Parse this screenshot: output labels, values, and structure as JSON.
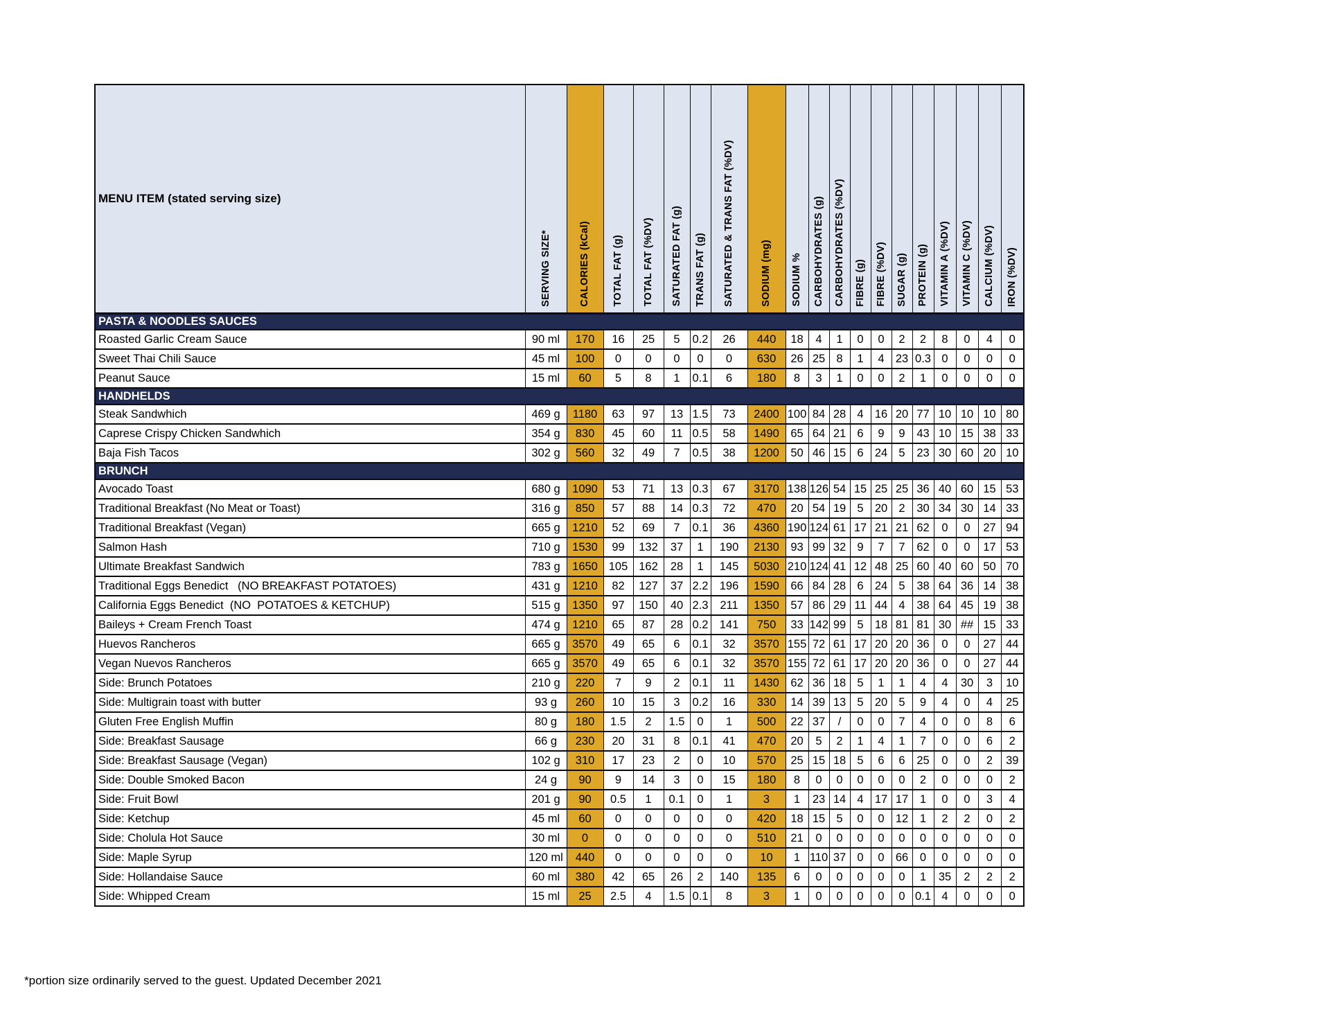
{
  "colors": {
    "highlight": "#DFA728",
    "section_bg": "#222B52",
    "section_text": "#FFFFFF",
    "header_bg": "#DEE4F0",
    "border": "#0A0A0A",
    "page_bg": "#FFFFFF"
  },
  "footnote": "*portion size ordinarily served to the guest. Updated December 2021",
  "table": {
    "menu_item_header": "MENU ITEM (stated serving size)",
    "highlight_column_indexes": [
      1,
      7
    ],
    "columns": [
      "SERVING SIZE*",
      "CALORIES (kCal)",
      "TOTAL FAT (g)",
      "TOTAL FAT (%DV)",
      "SATURATED FAT (g)",
      "TRANS FAT (g)",
      "SATURATED & TRANS FAT (%DV)",
      "SODIUM (mg)",
      "SODIUM %",
      "CARBOHYDRATES (g)",
      "CARBOHYDRATES (%DV)",
      "FIBRE (g)",
      "FIBRE (%DV)",
      "SUGAR (g)",
      "PROTEIN (g)",
      "VITAMIN A (%DV)",
      "VITAMIN C (%DV)",
      "CALCIUM (%DV)",
      "IRON (%DV)"
    ],
    "sections": [
      {
        "name": "PASTA & NOODLES SAUCES",
        "items": [
          {
            "name": "Roasted Garlic Cream Sauce",
            "values": [
              "90 ml",
              "170",
              "16",
              "25",
              "5",
              "0.2",
              "26",
              "440",
              "18",
              "4",
              "1",
              "0",
              "0",
              "2",
              "2",
              "8",
              "0",
              "4",
              "0"
            ]
          },
          {
            "name": "Sweet Thai Chili Sauce",
            "values": [
              "45 ml",
              "100",
              "0",
              "0",
              "0",
              "0",
              "0",
              "630",
              "26",
              "25",
              "8",
              "1",
              "4",
              "23",
              "0.3",
              "0",
              "0",
              "0",
              "0"
            ]
          },
          {
            "name": "Peanut Sauce",
            "values": [
              "15 ml",
              "60",
              "5",
              "8",
              "1",
              "0.1",
              "6",
              "180",
              "8",
              "3",
              "1",
              "0",
              "0",
              "2",
              "1",
              "0",
              "0",
              "0",
              "0"
            ]
          }
        ]
      },
      {
        "name": "HANDHELDS",
        "items": [
          {
            "name": "Steak Sandwhich",
            "values": [
              "469 g",
              "1180",
              "63",
              "97",
              "13",
              "1.5",
              "73",
              "2400",
              "100",
              "84",
              "28",
              "4",
              "16",
              "20",
              "77",
              "10",
              "10",
              "10",
              "80"
            ]
          },
          {
            "name": "Caprese Crispy Chicken Sandwhich",
            "values": [
              "354 g",
              "830",
              "45",
              "60",
              "11",
              "0.5",
              "58",
              "1490",
              "65",
              "64",
              "21",
              "6",
              "9",
              "9",
              "43",
              "10",
              "15",
              "38",
              "33"
            ]
          },
          {
            "name": "Baja Fish Tacos",
            "values": [
              "302 g",
              "560",
              "32",
              "49",
              "7",
              "0.5",
              "38",
              "1200",
              "50",
              "46",
              "15",
              "6",
              "24",
              "5",
              "23",
              "30",
              "60",
              "20",
              "10"
            ]
          }
        ]
      },
      {
        "name": "BRUNCH",
        "items": [
          {
            "name": "Avocado Toast",
            "values": [
              "680 g",
              "1090",
              "53",
              "71",
              "13",
              "0.3",
              "67",
              "3170",
              "138",
              "126",
              "54",
              "15",
              "25",
              "25",
              "36",
              "40",
              "60",
              "15",
              "53"
            ]
          },
          {
            "name": "Traditional Breakfast (No Meat or Toast)",
            "values": [
              "316 g",
              "850",
              "57",
              "88",
              "14",
              "0.3",
              "72",
              "470",
              "20",
              "54",
              "19",
              "5",
              "20",
              "2",
              "30",
              "34",
              "30",
              "14",
              "33"
            ]
          },
          {
            "name": "Traditional Breakfast (Vegan)",
            "values": [
              "665 g",
              "1210",
              "52",
              "69",
              "7",
              "0.1",
              "36",
              "4360",
              "190",
              "124",
              "61",
              "17",
              "21",
              "21",
              "62",
              "0",
              "0",
              "27",
              "94"
            ]
          },
          {
            "name": "Salmon Hash",
            "values": [
              "710 g",
              "1530",
              "99",
              "132",
              "37",
              "1",
              "190",
              "2130",
              "93",
              "99",
              "32",
              "9",
              "7",
              "7",
              "62",
              "0",
              "0",
              "17",
              "53"
            ]
          },
          {
            "name": "Ultimate Breakfast Sandwich",
            "values": [
              "783 g",
              "1650",
              "105",
              "162",
              "28",
              "1",
              "145",
              "5030",
              "210",
              "124",
              "41",
              "12",
              "48",
              "25",
              "60",
              "40",
              "60",
              "50",
              "70"
            ]
          },
          {
            "name": "Traditional Eggs Benedict   (NO BREAKFAST POTATOES)",
            "values": [
              "431 g",
              "1210",
              "82",
              "127",
              "37",
              "2.2",
              "196",
              "1590",
              "66",
              "84",
              "28",
              "6",
              "24",
              "5",
              "38",
              "64",
              "36",
              "14",
              "38"
            ]
          },
          {
            "name": "California Eggs Benedict  (NO  POTATOES & KETCHUP)",
            "values": [
              "515 g",
              "1350",
              "97",
              "150",
              "40",
              "2.3",
              "211",
              "1350",
              "57",
              "86",
              "29",
              "11",
              "44",
              "4",
              "38",
              "64",
              "45",
              "19",
              "38"
            ]
          },
          {
            "name": "Baileys + Cream French Toast",
            "values": [
              "474 g",
              "1210",
              "65",
              "87",
              "28",
              "0.2",
              "141",
              "750",
              "33",
              "142",
              "99",
              "5",
              "18",
              "81",
              "81",
              "30",
              "##",
              "15",
              "33"
            ]
          },
          {
            "name": "Huevos Rancheros",
            "values": [
              "665 g",
              "3570",
              "49",
              "65",
              "6",
              "0.1",
              "32",
              "3570",
              "155",
              "72",
              "61",
              "17",
              "20",
              "20",
              "36",
              "0",
              "0",
              "27",
              "44"
            ]
          },
          {
            "name": "Vegan Nuevos Rancheros",
            "values": [
              "665 g",
              "3570",
              "49",
              "65",
              "6",
              "0.1",
              "32",
              "3570",
              "155",
              "72",
              "61",
              "17",
              "20",
              "20",
              "36",
              "0",
              "0",
              "27",
              "44"
            ]
          },
          {
            "name": "Side: Brunch Potatoes",
            "values": [
              "210 g",
              "220",
              "7",
              "9",
              "2",
              "0.1",
              "11",
              "1430",
              "62",
              "36",
              "18",
              "5",
              "1",
              "1",
              "4",
              "4",
              "30",
              "3",
              "10"
            ]
          },
          {
            "name": "Side: Multigrain toast with butter",
            "values": [
              "93 g",
              "260",
              "10",
              "15",
              "3",
              "0.2",
              "16",
              "330",
              "14",
              "39",
              "13",
              "5",
              "20",
              "5",
              "9",
              "4",
              "0",
              "4",
              "25"
            ]
          },
          {
            "name": "Gluten Free English Muffin",
            "values": [
              "80 g",
              "180",
              "1.5",
              "2",
              "1.5",
              "0",
              "1",
              "500",
              "22",
              "37",
              "/",
              "0",
              "0",
              "7",
              "4",
              "0",
              "0",
              "8",
              "6"
            ]
          },
          {
            "name": "Side: Breakfast Sausage",
            "values": [
              "66 g",
              "230",
              "20",
              "31",
              "8",
              "0.1",
              "41",
              "470",
              "20",
              "5",
              "2",
              "1",
              "4",
              "1",
              "7",
              "0",
              "0",
              "6",
              "2"
            ]
          },
          {
            "name": "Side: Breakfast Sausage (Vegan)",
            "values": [
              "102 g",
              "310",
              "17",
              "23",
              "2",
              "0",
              "10",
              "570",
              "25",
              "15",
              "18",
              "5",
              "6",
              "6",
              "25",
              "0",
              "0",
              "2",
              "39"
            ]
          },
          {
            "name": "Side: Double Smoked Bacon",
            "values": [
              "24 g",
              "90",
              "9",
              "14",
              "3",
              "0",
              "15",
              "180",
              "8",
              "0",
              "0",
              "0",
              "0",
              "0",
              "2",
              "0",
              "0",
              "0",
              "2"
            ]
          },
          {
            "name": "Side: Fruit Bowl",
            "values": [
              "201 g",
              "90",
              "0.5",
              "1",
              "0.1",
              "0",
              "1",
              "3",
              "1",
              "23",
              "14",
              "4",
              "17",
              "17",
              "1",
              "0",
              "0",
              "3",
              "4"
            ]
          },
          {
            "name": "Side: Ketchup",
            "values": [
              "45 ml",
              "60",
              "0",
              "0",
              "0",
              "0",
              "0",
              "420",
              "18",
              "15",
              "5",
              "0",
              "0",
              "12",
              "1",
              "2",
              "2",
              "0",
              "2"
            ]
          },
          {
            "name": "Side: Cholula Hot Sauce",
            "values": [
              "30 ml",
              "0",
              "0",
              "0",
              "0",
              "0",
              "0",
              "510",
              "21",
              "0",
              "0",
              "0",
              "0",
              "0",
              "0",
              "0",
              "0",
              "0",
              "0"
            ]
          },
          {
            "name": "Side: Maple Syrup",
            "values": [
              "120 ml",
              "440",
              "0",
              "0",
              "0",
              "0",
              "0",
              "10",
              "1",
              "110",
              "37",
              "0",
              "0",
              "66",
              "0",
              "0",
              "0",
              "0",
              "0"
            ]
          },
          {
            "name": "Side: Hollandaise Sauce",
            "values": [
              "60 ml",
              "380",
              "42",
              "65",
              "26",
              "2",
              "140",
              "135",
              "6",
              "0",
              "0",
              "0",
              "0",
              "0",
              "1",
              "35",
              "2",
              "2",
              "2"
            ]
          },
          {
            "name": "Side: Whipped Cream",
            "values": [
              "15 ml",
              "25",
              "2.5",
              "4",
              "1.5",
              "0.1",
              "8",
              "3",
              "1",
              "0",
              "0",
              "0",
              "0",
              "0",
              "0.1",
              "4",
              "0",
              "0",
              "0"
            ]
          }
        ]
      }
    ]
  }
}
